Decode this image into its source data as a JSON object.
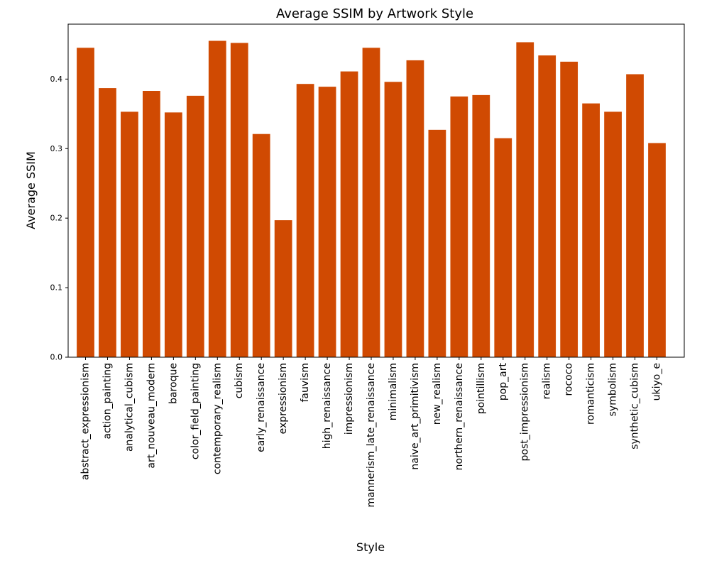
{
  "chart_data": {
    "type": "bar",
    "title": "Average SSIM by Artwork Style",
    "xlabel": "Style",
    "ylabel": "Average SSIM",
    "ylim": [
      0,
      0.479
    ],
    "yticks": [
      0.0,
      0.1,
      0.2,
      0.3,
      0.4
    ],
    "ytick_labels": [
      "0.0",
      "0.1",
      "0.2",
      "0.3",
      "0.4"
    ],
    "grid": false,
    "bar_color": "#d04a02",
    "categories": [
      "abstract_expressionism",
      "action_painting",
      "analytical_cubism",
      "art_nouveau_modern",
      "baroque",
      "color_field_painting",
      "contemporary_realism",
      "cubism",
      "early_renaissance",
      "expressionism",
      "fauvism",
      "high_renaissance",
      "impressionism",
      "mannerism_late_renaissance",
      "minimalism",
      "naive_art_primitivism",
      "new_realism",
      "northern_renaissance",
      "pointillism",
      "pop_art",
      "post_impressionism",
      "realism",
      "rococo",
      "romanticism",
      "symbolism",
      "synthetic_cubism",
      "ukiyo_e"
    ],
    "values": [
      0.445,
      0.387,
      0.353,
      0.383,
      0.352,
      0.376,
      0.455,
      0.452,
      0.321,
      0.197,
      0.393,
      0.389,
      0.411,
      0.445,
      0.396,
      0.427,
      0.327,
      0.375,
      0.377,
      0.315,
      0.453,
      0.434,
      0.425,
      0.365,
      0.353,
      0.407,
      0.308
    ]
  }
}
